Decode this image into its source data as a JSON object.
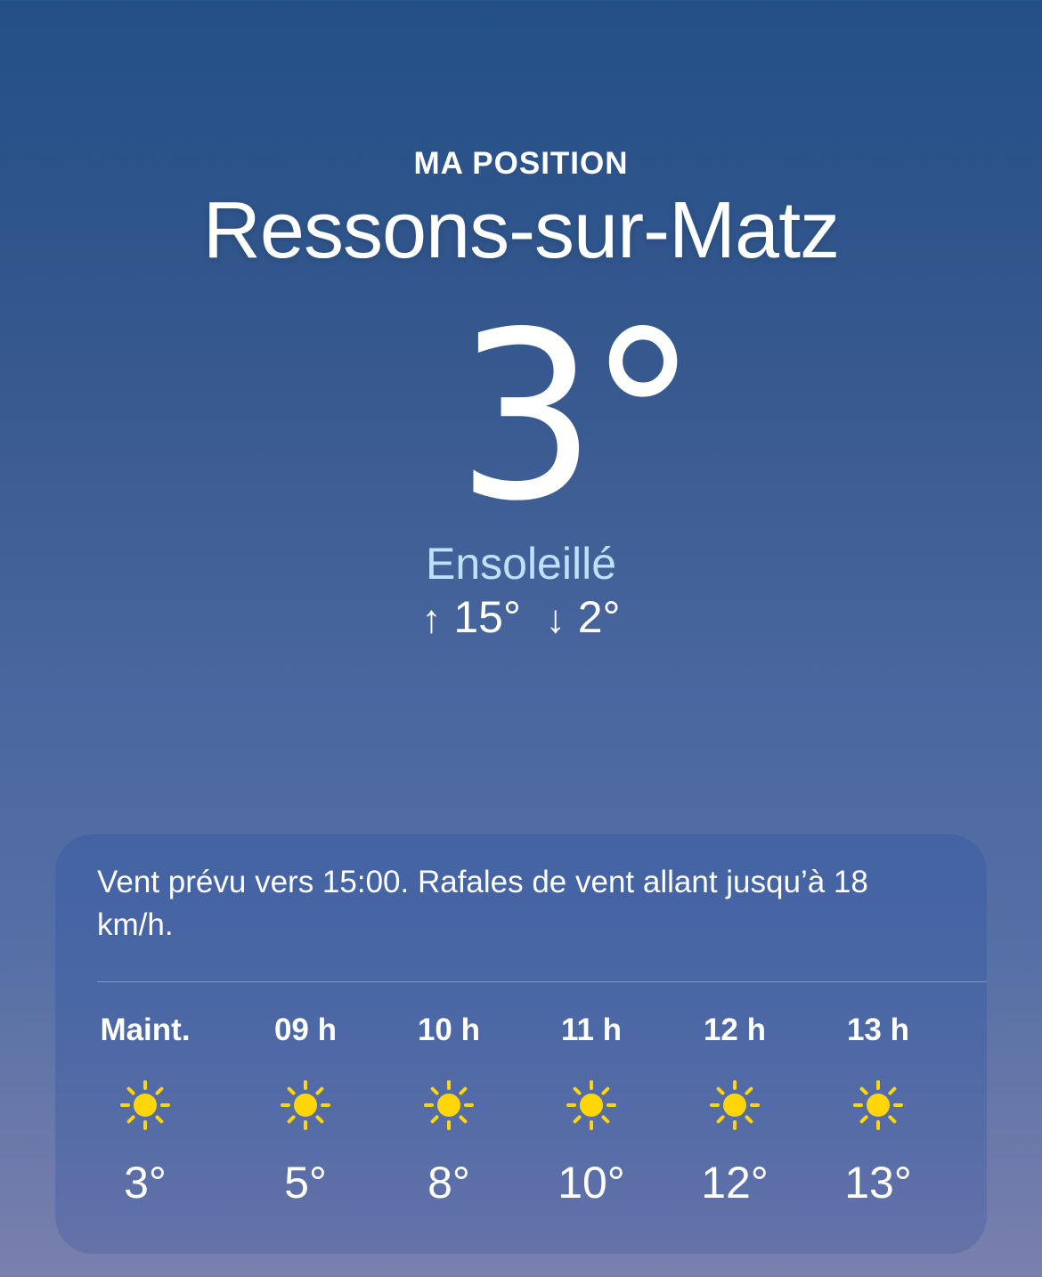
{
  "header": {
    "location_label": "MA POSITION",
    "city": "Ressons-sur-Matz",
    "temperature": "3",
    "degree": "°",
    "condition": "Ensoleillé",
    "high": "15°",
    "low": "2°",
    "high_icon": "arrow-up-icon",
    "low_icon": "arrow-down-icon"
  },
  "forecast_card": {
    "summary": "Vent prévu vers 15:00. Rafales de vent allant jusqu’à 18 km/h.",
    "hours": [
      {
        "label": "Maint.",
        "icon": "sun-icon",
        "temp": "3°"
      },
      {
        "label": "09 h",
        "icon": "sun-icon",
        "temp": "5°"
      },
      {
        "label": "10 h",
        "icon": "sun-icon",
        "temp": "8°"
      },
      {
        "label": "11 h",
        "icon": "sun-icon",
        "temp": "10°"
      },
      {
        "label": "12 h",
        "icon": "sun-icon",
        "temp": "12°"
      },
      {
        "label": "13 h",
        "icon": "sun-icon",
        "temp": "13°"
      }
    ]
  },
  "colors": {
    "sun": "#ffd60a",
    "condition_text": "#bfe0ff"
  }
}
